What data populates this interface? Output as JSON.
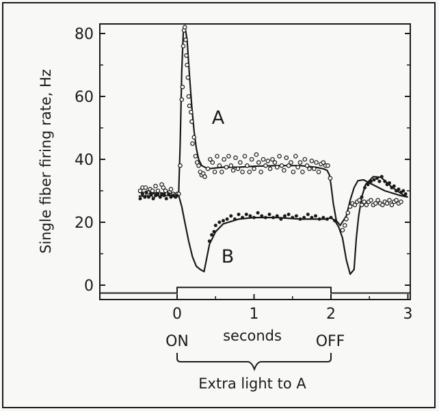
{
  "chart_data": {
    "type": "line",
    "ylabel": "Single fiber firing rate,  Hz",
    "xlabel": "seconds",
    "xlim": [
      -0.5,
      3
    ],
    "ylim": [
      -3,
      85
    ],
    "x_ticks": [
      "0",
      "1",
      "2",
      "3"
    ],
    "y_ticks": [
      "0",
      "20",
      "40",
      "60",
      "80"
    ],
    "grid": false,
    "annotations": {
      "curve_a": "A",
      "curve_b": "B",
      "on": "ON",
      "off": "OFF",
      "stimulus": "Extra light to A"
    },
    "stimulus": {
      "on": 0,
      "off": 2,
      "level_low": -2.5,
      "level_high": -0.7
    },
    "series": [
      {
        "name": "A",
        "marker": "open-circle",
        "curve": [
          [
            -0.5,
            29.5
          ],
          [
            -0.3,
            29.3
          ],
          [
            -0.1,
            29.2
          ],
          [
            0.02,
            29.2
          ],
          [
            0.04,
            45
          ],
          [
            0.06,
            68
          ],
          [
            0.08,
            80
          ],
          [
            0.1,
            82.5
          ],
          [
            0.13,
            78
          ],
          [
            0.16,
            67
          ],
          [
            0.19,
            57
          ],
          [
            0.22,
            49
          ],
          [
            0.25,
            43.5
          ],
          [
            0.28,
            40
          ],
          [
            0.32,
            38
          ],
          [
            0.4,
            37
          ],
          [
            0.6,
            37.5
          ],
          [
            0.8,
            37.5
          ],
          [
            1.0,
            37.8
          ],
          [
            1.3,
            38
          ],
          [
            1.6,
            38
          ],
          [
            1.8,
            37.5
          ],
          [
            1.9,
            37
          ],
          [
            1.95,
            36.5
          ],
          [
            1.98,
            35
          ],
          [
            2.0,
            32
          ],
          [
            2.03,
            26
          ],
          [
            2.07,
            20.5
          ],
          [
            2.12,
            19
          ],
          [
            2.2,
            22
          ],
          [
            2.25,
            27
          ],
          [
            2.3,
            31
          ],
          [
            2.35,
            33.2
          ],
          [
            2.42,
            33.5
          ],
          [
            2.5,
            32.5
          ],
          [
            2.7,
            30
          ],
          [
            2.9,
            28.5
          ],
          [
            3.0,
            28
          ]
        ],
        "points": [
          [
            -0.48,
            30
          ],
          [
            -0.45,
            31
          ],
          [
            -0.43,
            29
          ],
          [
            -0.41,
            31
          ],
          [
            -0.38,
            29.5
          ],
          [
            -0.35,
            30.5
          ],
          [
            -0.32,
            30
          ],
          [
            -0.3,
            28.5
          ],
          [
            -0.28,
            31.5
          ],
          [
            -0.25,
            30
          ],
          [
            -0.23,
            29
          ],
          [
            -0.2,
            32
          ],
          [
            -0.18,
            31
          ],
          [
            -0.15,
            30
          ],
          [
            -0.13,
            29
          ],
          [
            -0.1,
            29.5
          ],
          [
            -0.08,
            30.5
          ],
          [
            -0.05,
            29
          ],
          [
            -0.03,
            28.5
          ],
          [
            0.0,
            29
          ],
          [
            0.02,
            29
          ],
          [
            0.04,
            38
          ],
          [
            0.06,
            59
          ],
          [
            0.07,
            63
          ],
          [
            0.08,
            76
          ],
          [
            0.09,
            81
          ],
          [
            0.1,
            82
          ],
          [
            0.11,
            78
          ],
          [
            0.12,
            73
          ],
          [
            0.13,
            70
          ],
          [
            0.14,
            66
          ],
          [
            0.15,
            60
          ],
          [
            0.16,
            57
          ],
          [
            0.18,
            55
          ],
          [
            0.19,
            52
          ],
          [
            0.2,
            45
          ],
          [
            0.22,
            47
          ],
          [
            0.24,
            41
          ],
          [
            0.26,
            39
          ],
          [
            0.28,
            38
          ],
          [
            0.3,
            36
          ],
          [
            0.32,
            35
          ],
          [
            0.34,
            35.5
          ],
          [
            0.36,
            34.5
          ],
          [
            0.4,
            37
          ],
          [
            0.43,
            40
          ],
          [
            0.46,
            39
          ],
          [
            0.49,
            36
          ],
          [
            0.52,
            41
          ],
          [
            0.55,
            38
          ],
          [
            0.58,
            36
          ],
          [
            0.61,
            40
          ],
          [
            0.64,
            37.5
          ],
          [
            0.67,
            41
          ],
          [
            0.7,
            38
          ],
          [
            0.73,
            36.5
          ],
          [
            0.76,
            40.5
          ],
          [
            0.79,
            37
          ],
          [
            0.82,
            39
          ],
          [
            0.85,
            36
          ],
          [
            0.88,
            41
          ],
          [
            0.91,
            38
          ],
          [
            0.94,
            36
          ],
          [
            0.97,
            40
          ],
          [
            1.0,
            37
          ],
          [
            1.03,
            41.5
          ],
          [
            1.06,
            39
          ],
          [
            1.09,
            36
          ],
          [
            1.12,
            40
          ],
          [
            1.15,
            38
          ],
          [
            1.18,
            39.5
          ],
          [
            1.21,
            37
          ],
          [
            1.24,
            40
          ],
          [
            1.27,
            39
          ],
          [
            1.3,
            37.5
          ],
          [
            1.33,
            41
          ],
          [
            1.36,
            38
          ],
          [
            1.39,
            36.5
          ],
          [
            1.42,
            40.5
          ],
          [
            1.45,
            38
          ],
          [
            1.48,
            39
          ],
          [
            1.51,
            36
          ],
          [
            1.54,
            41
          ],
          [
            1.57,
            37.5
          ],
          [
            1.6,
            39
          ],
          [
            1.63,
            36
          ],
          [
            1.66,
            40
          ],
          [
            1.69,
            38
          ],
          [
            1.72,
            37
          ],
          [
            1.75,
            39.5
          ],
          [
            1.78,
            37
          ],
          [
            1.81,
            39
          ],
          [
            1.84,
            36
          ],
          [
            1.87,
            38.5
          ],
          [
            1.9,
            39
          ],
          [
            1.93,
            38
          ],
          [
            1.96,
            38
          ],
          [
            1.99,
            34
          ],
          [
            2.15,
            17.5
          ],
          [
            2.18,
            19
          ],
          [
            2.2,
            21
          ],
          [
            2.22,
            23
          ],
          [
            2.25,
            25
          ],
          [
            2.28,
            26
          ],
          [
            2.31,
            25.5
          ],
          [
            2.34,
            26.5
          ],
          [
            2.37,
            27
          ],
          [
            2.4,
            25.5
          ],
          [
            2.43,
            26.5
          ],
          [
            2.46,
            25.5
          ],
          [
            2.49,
            26.5
          ],
          [
            2.52,
            27
          ],
          [
            2.55,
            25.5
          ],
          [
            2.58,
            26
          ],
          [
            2.61,
            27
          ],
          [
            2.64,
            26
          ],
          [
            2.67,
            25.5
          ],
          [
            2.7,
            26.5
          ],
          [
            2.73,
            26
          ],
          [
            2.76,
            27
          ],
          [
            2.79,
            25.5
          ],
          [
            2.82,
            26.5
          ],
          [
            2.85,
            27
          ],
          [
            2.88,
            26
          ],
          [
            2.91,
            26.5
          ]
        ]
      },
      {
        "name": "B",
        "marker": "filled-dot",
        "curve": [
          [
            -0.5,
            28.3
          ],
          [
            -0.3,
            28.4
          ],
          [
            -0.1,
            28.5
          ],
          [
            0.02,
            28.5
          ],
          [
            0.06,
            25
          ],
          [
            0.1,
            20
          ],
          [
            0.15,
            14
          ],
          [
            0.2,
            9
          ],
          [
            0.25,
            6
          ],
          [
            0.3,
            5
          ],
          [
            0.35,
            4.3
          ],
          [
            0.38,
            8
          ],
          [
            0.42,
            13
          ],
          [
            0.5,
            17
          ],
          [
            0.6,
            19.5
          ],
          [
            0.8,
            21
          ],
          [
            1.0,
            21.5
          ],
          [
            1.3,
            21.5
          ],
          [
            1.6,
            21
          ],
          [
            1.8,
            21
          ],
          [
            1.95,
            21
          ],
          [
            2.0,
            21.5
          ],
          [
            2.05,
            20.5
          ],
          [
            2.1,
            18.5
          ],
          [
            2.15,
            15
          ],
          [
            2.2,
            8
          ],
          [
            2.25,
            3.5
          ],
          [
            2.3,
            5
          ],
          [
            2.33,
            15
          ],
          [
            2.36,
            22
          ],
          [
            2.4,
            28
          ],
          [
            2.45,
            32
          ],
          [
            2.55,
            34.5
          ],
          [
            2.65,
            34.3
          ],
          [
            2.8,
            31
          ],
          [
            2.95,
            28.5
          ],
          [
            3.0,
            28
          ]
        ],
        "points": [
          [
            -0.48,
            27.5
          ],
          [
            -0.45,
            29
          ],
          [
            -0.42,
            28
          ],
          [
            -0.4,
            29.5
          ],
          [
            -0.37,
            28
          ],
          [
            -0.34,
            29
          ],
          [
            -0.31,
            27.5
          ],
          [
            -0.28,
            28.5
          ],
          [
            -0.25,
            29
          ],
          [
            -0.22,
            28
          ],
          [
            -0.2,
            29
          ],
          [
            -0.17,
            28.5
          ],
          [
            -0.14,
            27.5
          ],
          [
            -0.11,
            29
          ],
          [
            -0.08,
            28
          ],
          [
            -0.05,
            28.5
          ],
          [
            -0.02,
            28
          ],
          [
            0.0,
            28.5
          ],
          [
            0.42,
            14
          ],
          [
            0.45,
            16
          ],
          [
            0.48,
            17
          ],
          [
            0.5,
            19
          ],
          [
            0.55,
            20
          ],
          [
            0.6,
            20.5
          ],
          [
            0.65,
            21
          ],
          [
            0.7,
            22
          ],
          [
            0.75,
            21
          ],
          [
            0.8,
            22.5
          ],
          [
            0.85,
            21.5
          ],
          [
            0.9,
            22.5
          ],
          [
            0.95,
            22
          ],
          [
            1.0,
            21.5
          ],
          [
            1.05,
            23
          ],
          [
            1.1,
            22
          ],
          [
            1.15,
            21.5
          ],
          [
            1.2,
            22.5
          ],
          [
            1.25,
            21.5
          ],
          [
            1.3,
            22
          ],
          [
            1.35,
            21
          ],
          [
            1.4,
            22
          ],
          [
            1.45,
            22.5
          ],
          [
            1.5,
            21.5
          ],
          [
            1.55,
            22
          ],
          [
            1.6,
            21
          ],
          [
            1.65,
            21.5
          ],
          [
            1.7,
            22.5
          ],
          [
            1.75,
            21.5
          ],
          [
            1.8,
            22
          ],
          [
            1.85,
            21
          ],
          [
            1.9,
            21.5
          ],
          [
            1.95,
            21
          ],
          [
            2.0,
            21.5
          ],
          [
            2.05,
            20.5
          ],
          [
            2.4,
            28
          ],
          [
            2.44,
            31
          ],
          [
            2.48,
            32
          ],
          [
            2.52,
            33
          ],
          [
            2.56,
            33.5
          ],
          [
            2.6,
            34
          ],
          [
            2.63,
            33
          ],
          [
            2.66,
            34.5
          ],
          [
            2.7,
            33
          ],
          [
            2.73,
            32
          ],
          [
            2.76,
            32.5
          ],
          [
            2.79,
            31
          ],
          [
            2.82,
            31.5
          ],
          [
            2.85,
            30
          ],
          [
            2.88,
            30.5
          ],
          [
            2.91,
            29.5
          ],
          [
            2.94,
            30
          ],
          [
            2.97,
            29
          ]
        ]
      }
    ]
  }
}
